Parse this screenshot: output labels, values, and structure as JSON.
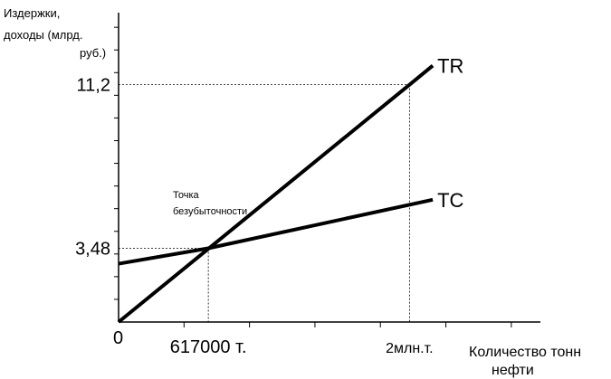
{
  "chart_data": {
    "type": "line",
    "ylabel_lines": [
      "Издержки,",
      "доходы (млрд.",
      "руб.)"
    ],
    "xlabel_lines": [
      "Количество тонн",
      "нефти"
    ],
    "origin_label": "0",
    "x_tick_labels": [
      {
        "x": 617000,
        "text": "617000 т."
      },
      {
        "x": 2000000,
        "text": "2млн.т."
      }
    ],
    "y_tick_labels": [
      {
        "y": 3.48,
        "text": "3,48"
      },
      {
        "y": 11.2,
        "text": "11,2"
      }
    ],
    "xlim": [
      0,
      2900000
    ],
    "ylim": [
      0,
      14.6
    ],
    "x_minor_tick_step": 450000,
    "y_minor_tick_step": 1.07,
    "series": [
      {
        "name": "TR",
        "points": [
          [
            0,
            0
          ],
          [
            2000000,
            11.2
          ],
          [
            2160000,
            12.1
          ]
        ]
      },
      {
        "name": "TC",
        "points": [
          [
            0,
            2.75
          ],
          [
            617000,
            3.48
          ],
          [
            2160000,
            5.77
          ]
        ]
      }
    ],
    "break_even": {
      "label_lines": [
        "Точка",
        "безубыточности"
      ],
      "x": 617000,
      "y": 3.48
    },
    "reference_lines": [
      {
        "x": 617000,
        "y": 3.48
      },
      {
        "x": 2000000,
        "y": 11.2
      }
    ]
  }
}
